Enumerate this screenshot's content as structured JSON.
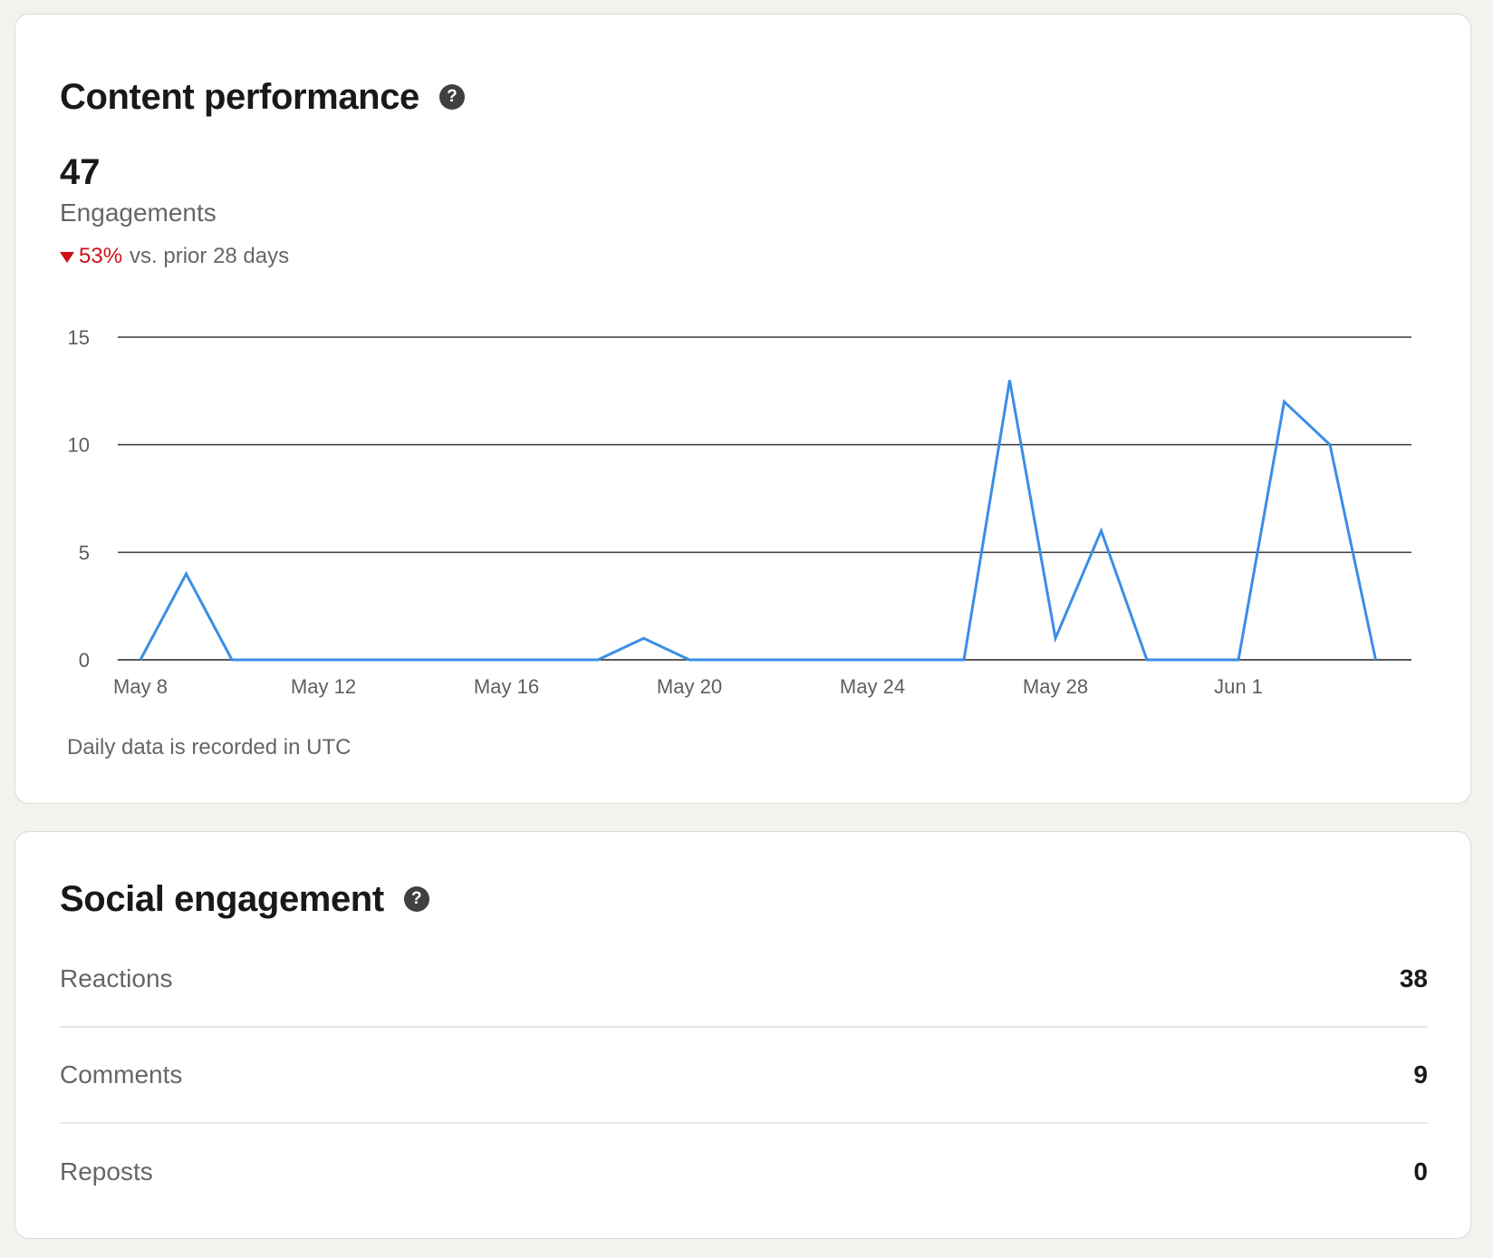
{
  "content_performance": {
    "title": "Content performance",
    "help_icon": "question-circle-icon",
    "total": "47",
    "metric_label": "Engagements",
    "delta_value": "53%",
    "delta_text": "vs. prior 28 days",
    "delta_direction": "down",
    "note": "Daily data is recorded in UTC"
  },
  "social_engagement": {
    "title": "Social engagement",
    "help_icon": "question-circle-icon",
    "rows": [
      {
        "label": "Reactions",
        "value": "38"
      },
      {
        "label": "Comments",
        "value": "9"
      },
      {
        "label": "Reposts",
        "value": "0"
      }
    ]
  },
  "colors": {
    "line": "#3a8ee6",
    "negative": "#cc1016",
    "background": "#f3f2ef"
  },
  "chart_data": {
    "type": "line",
    "title": "",
    "xlabel": "",
    "ylabel": "",
    "x": [
      "May 8",
      "May 9",
      "May 10",
      "May 11",
      "May 12",
      "May 13",
      "May 14",
      "May 15",
      "May 16",
      "May 17",
      "May 18",
      "May 19",
      "May 20",
      "May 21",
      "May 22",
      "May 23",
      "May 24",
      "May 25",
      "May 26",
      "May 27",
      "May 28",
      "May 29",
      "May 30",
      "May 31",
      "Jun 1",
      "Jun 2",
      "Jun 3",
      "Jun 4"
    ],
    "values": [
      0,
      4,
      0,
      0,
      0,
      0,
      0,
      0,
      0,
      0,
      0,
      1,
      0,
      0,
      0,
      0,
      0,
      0,
      0,
      13,
      1,
      6,
      0,
      0,
      0,
      12,
      10,
      0
    ],
    "x_ticks": [
      "May 8",
      "May 12",
      "May 16",
      "May 20",
      "May 24",
      "May 28",
      "Jun 1"
    ],
    "y_ticks": [
      0,
      5,
      10,
      15
    ],
    "ylim": [
      0,
      15
    ],
    "grid": true,
    "legend": "none"
  }
}
